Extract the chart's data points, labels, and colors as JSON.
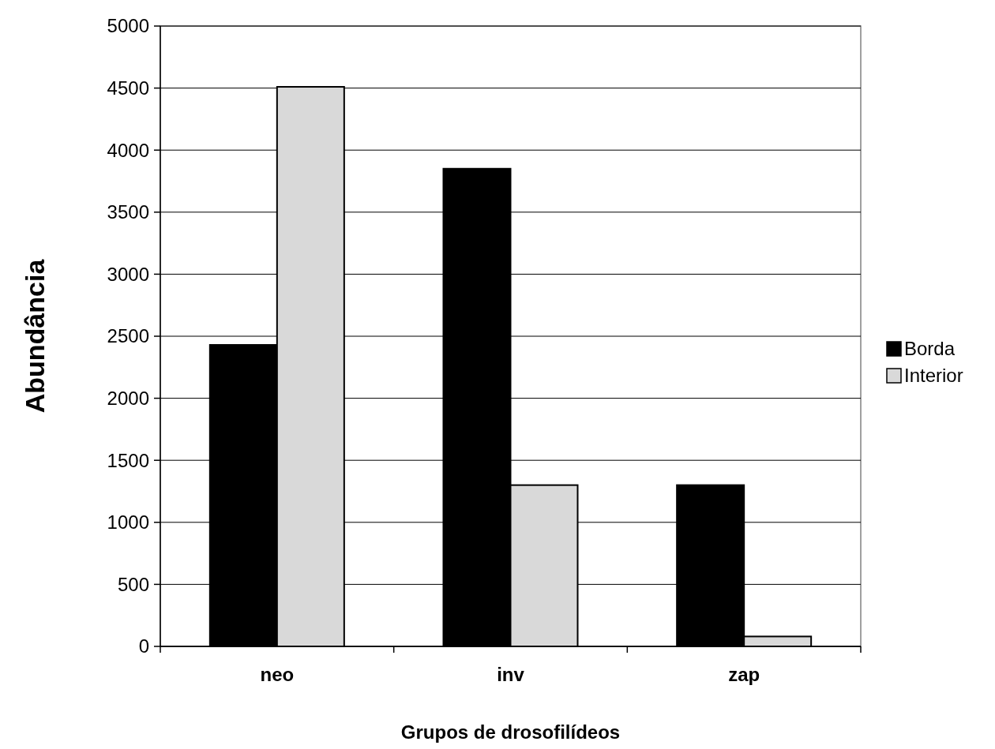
{
  "chart_data": {
    "type": "bar",
    "xlabel": "Grupos de drosofilídeos",
    "ylabel": "Abundância",
    "categories": [
      "neo",
      "inv",
      "zap"
    ],
    "series": [
      {
        "name": "Borda",
        "color": "#000000",
        "values": [
          2430,
          3850,
          1300
        ]
      },
      {
        "name": "Interior",
        "color": "#d9d9d9",
        "values": [
          4510,
          1300,
          80
        ]
      }
    ],
    "ylim": [
      0,
      5000
    ],
    "yticks": [
      0,
      500,
      1000,
      1500,
      2000,
      2500,
      3000,
      3500,
      4000,
      4500,
      5000
    ],
    "grid": "y",
    "legend": "right"
  }
}
